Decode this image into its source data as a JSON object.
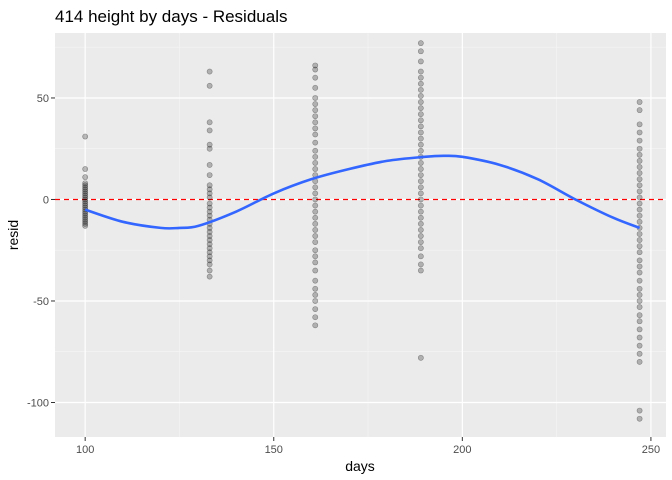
{
  "chart_data": {
    "type": "scatter",
    "title": "414 height by days - Residuals",
    "xlabel": "days",
    "ylabel": "resid",
    "xlim": [
      92,
      254
    ],
    "ylim": [
      -117,
      82
    ],
    "x_ticks": [
      100,
      150,
      200,
      250
    ],
    "x_minor_ticks": [
      125,
      175,
      225
    ],
    "y_ticks": [
      -100,
      -50,
      0,
      50
    ],
    "y_minor_ticks": [
      -75,
      -25,
      25,
      75
    ],
    "grid": true,
    "points_color": "#000000",
    "points_opacity": 0.25,
    "points": [
      {
        "x": 100,
        "y": [
          31,
          15,
          11,
          8,
          7,
          6,
          5,
          4,
          3,
          2,
          1,
          0,
          -1,
          -2,
          -3,
          -4,
          -5,
          -6,
          -7,
          -8,
          -9,
          -10,
          -11,
          -12,
          -13
        ]
      },
      {
        "x": 133,
        "y": [
          63,
          56,
          38,
          34,
          27,
          25,
          17,
          12,
          7,
          5,
          3,
          1,
          -2,
          -4,
          -6,
          -8,
          -10,
          -12,
          -14,
          -16,
          -18,
          -20,
          -22,
          -24,
          -26,
          -28,
          -30,
          -32,
          -35,
          -38
        ]
      },
      {
        "x": 161,
        "y": [
          66,
          64,
          60,
          55,
          50,
          47,
          44,
          41,
          38,
          35,
          32,
          28,
          24,
          21,
          18,
          15,
          12,
          9,
          6,
          3,
          0,
          -3,
          -6,
          -9,
          -12,
          -15,
          -18,
          -21,
          -25,
          -28,
          -31,
          -35,
          -40,
          -44,
          -47,
          -50,
          -54,
          -58,
          -62
        ]
      },
      {
        "x": 189,
        "y": [
          77,
          73,
          68,
          63,
          60,
          57,
          54,
          51,
          48,
          45,
          42,
          39,
          36,
          33,
          30,
          27,
          24,
          21,
          18,
          15,
          12,
          9,
          6,
          3,
          0,
          -3,
          -6,
          -9,
          -12,
          -15,
          -18,
          -21,
          -24,
          -28,
          -32,
          -35,
          -78
        ]
      },
      {
        "x": 247,
        "y": [
          48,
          44,
          37,
          33,
          29,
          25,
          22,
          19,
          16,
          13,
          10,
          7,
          4,
          1,
          -2,
          -5,
          -8,
          -11,
          -14,
          -17,
          -20,
          -23,
          -26,
          -30,
          -33,
          -36,
          -40,
          -44,
          -47,
          -50,
          -53,
          -57,
          -60,
          -64,
          -68,
          -72,
          -76,
          -80,
          -104,
          -108
        ]
      }
    ],
    "hline": {
      "y": 0,
      "color": "#ff0000",
      "style": "dashed"
    },
    "smooth_line": {
      "color": "#3366ff",
      "x": [
        100,
        110,
        120,
        125,
        130,
        140,
        150,
        160,
        170,
        180,
        190,
        195,
        200,
        210,
        220,
        230,
        240,
        247
      ],
      "y": [
        -5,
        -11,
        -14,
        -14,
        -13,
        -6,
        3,
        10,
        15,
        19,
        21,
        21.5,
        21,
        17,
        10,
        0,
        -9,
        -14
      ]
    }
  }
}
